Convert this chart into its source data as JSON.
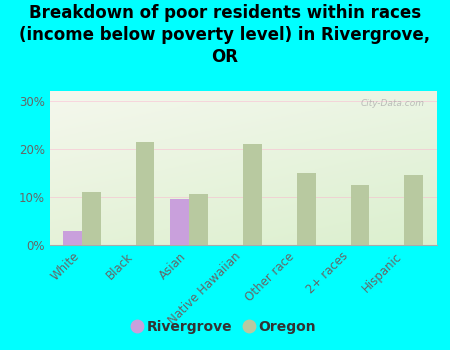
{
  "title": "Breakdown of poor residents within races\n(income below poverty level) in Rivergrove,\nOR",
  "categories": [
    "White",
    "Black",
    "Asian",
    "Native Hawaiian",
    "Other race",
    "2+ races",
    "Hispanic"
  ],
  "rivergrove_values": [
    3.0,
    0.0,
    9.5,
    0.0,
    0.0,
    0.0,
    0.0
  ],
  "oregon_values": [
    11.0,
    21.5,
    10.5,
    21.0,
    15.0,
    12.5,
    14.5
  ],
  "rivergrove_color": "#c9a0dc",
  "oregon_color": "#b8c9a0",
  "background_color": "#00ffff",
  "ylim": [
    0,
    32
  ],
  "yticks": [
    0,
    10,
    20,
    30
  ],
  "ytick_labels": [
    "0%",
    "10%",
    "20%",
    "30%"
  ],
  "title_fontsize": 12,
  "tick_fontsize": 8.5,
  "legend_fontsize": 10,
  "bar_width": 0.35,
  "watermark": "City-Data.com"
}
